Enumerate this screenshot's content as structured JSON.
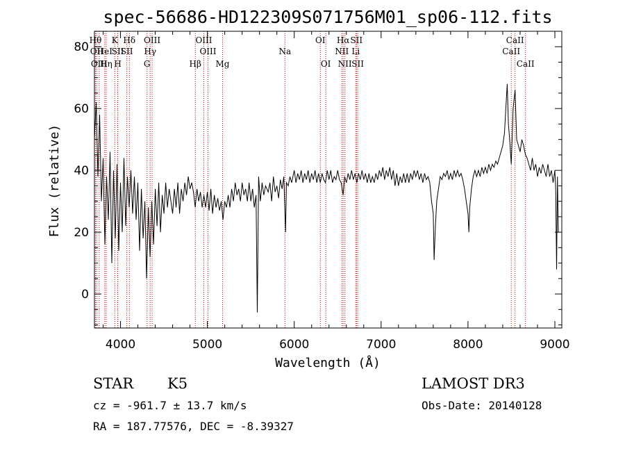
{
  "chart_data": {
    "type": "line",
    "title": "spec-56686-HD122309S071756M01_sp06-112.fits",
    "xlabel": "Wavelength (Å)",
    "ylabel": "Flux (relative)",
    "xlim": [
      3700,
      9080
    ],
    "ylim": [
      -11,
      85
    ],
    "xticks": [
      4000,
      5000,
      6000,
      7000,
      8000,
      9000
    ],
    "yticks": [
      0,
      20,
      40,
      60,
      80
    ],
    "series": [
      {
        "points": [
          [
            3700,
            50
          ],
          [
            3720,
            62
          ],
          [
            3740,
            38
          ],
          [
            3760,
            58
          ],
          [
            3780,
            30
          ],
          [
            3800,
            44
          ],
          [
            3820,
            16
          ],
          [
            3840,
            38
          ],
          [
            3860,
            24
          ],
          [
            3880,
            46
          ],
          [
            3900,
            10
          ],
          [
            3920,
            40
          ],
          [
            3940,
            18
          ],
          [
            3960,
            42
          ],
          [
            3980,
            14
          ],
          [
            4000,
            36
          ],
          [
            4020,
            20
          ],
          [
            4040,
            44
          ],
          [
            4060,
            22
          ],
          [
            4080,
            38
          ],
          [
            4100,
            28
          ],
          [
            4120,
            40
          ],
          [
            4140,
            26
          ],
          [
            4160,
            38
          ],
          [
            4180,
            24
          ],
          [
            4200,
            36
          ],
          [
            4220,
            14
          ],
          [
            4240,
            34
          ],
          [
            4260,
            18
          ],
          [
            4280,
            30
          ],
          [
            4300,
            5
          ],
          [
            4320,
            28
          ],
          [
            4340,
            12
          ],
          [
            4360,
            30
          ],
          [
            4380,
            16
          ],
          [
            4400,
            34
          ],
          [
            4420,
            22
          ],
          [
            4440,
            36
          ],
          [
            4460,
            20
          ],
          [
            4480,
            32
          ],
          [
            4500,
            26
          ],
          [
            4520,
            36
          ],
          [
            4540,
            28
          ],
          [
            4560,
            34
          ],
          [
            4580,
            30
          ],
          [
            4600,
            26
          ],
          [
            4620,
            34
          ],
          [
            4640,
            28
          ],
          [
            4660,
            36
          ],
          [
            4680,
            26
          ],
          [
            4700,
            34
          ],
          [
            4720,
            30
          ],
          [
            4740,
            36
          ],
          [
            4760,
            32
          ],
          [
            4780,
            38
          ],
          [
            4800,
            34
          ],
          [
            4820,
            36
          ],
          [
            4840,
            33
          ],
          [
            4860,
            28
          ],
          [
            4880,
            34
          ],
          [
            4900,
            30
          ],
          [
            4920,
            33
          ],
          [
            4940,
            28
          ],
          [
            4960,
            32
          ],
          [
            4980,
            28
          ],
          [
            5000,
            33
          ],
          [
            5020,
            27
          ],
          [
            5040,
            34
          ],
          [
            5060,
            26
          ],
          [
            5080,
            32
          ],
          [
            5100,
            28
          ],
          [
            5120,
            31
          ],
          [
            5140,
            27
          ],
          [
            5160,
            30
          ],
          [
            5180,
            24
          ],
          [
            5200,
            30
          ],
          [
            5220,
            28
          ],
          [
            5240,
            32
          ],
          [
            5260,
            28
          ],
          [
            5280,
            34
          ],
          [
            5300,
            30
          ],
          [
            5320,
            36
          ],
          [
            5340,
            32
          ],
          [
            5360,
            34
          ],
          [
            5380,
            30
          ],
          [
            5400,
            36
          ],
          [
            5420,
            32
          ],
          [
            5440,
            34
          ],
          [
            5460,
            30
          ],
          [
            5480,
            36
          ],
          [
            5500,
            30
          ],
          [
            5520,
            34
          ],
          [
            5540,
            28
          ],
          [
            5560,
            32
          ],
          [
            5575,
            -6
          ],
          [
            5590,
            38
          ],
          [
            5610,
            30
          ],
          [
            5630,
            36
          ],
          [
            5650,
            32
          ],
          [
            5670,
            35
          ],
          [
            5700,
            33
          ],
          [
            5720,
            36
          ],
          [
            5740,
            30
          ],
          [
            5760,
            38
          ],
          [
            5780,
            33
          ],
          [
            5800,
            35
          ],
          [
            5820,
            31
          ],
          [
            5840,
            37
          ],
          [
            5860,
            34
          ],
          [
            5880,
            38
          ],
          [
            5900,
            20
          ],
          [
            5910,
            36
          ],
          [
            5930,
            35
          ],
          [
            5950,
            38
          ],
          [
            5970,
            36
          ],
          [
            6000,
            40
          ],
          [
            6020,
            36
          ],
          [
            6040,
            39
          ],
          [
            6060,
            37
          ],
          [
            6080,
            40
          ],
          [
            6100,
            36
          ],
          [
            6120,
            39
          ],
          [
            6140,
            37
          ],
          [
            6160,
            40
          ],
          [
            6180,
            36
          ],
          [
            6200,
            39
          ],
          [
            6220,
            37
          ],
          [
            6240,
            40
          ],
          [
            6260,
            36
          ],
          [
            6280,
            39
          ],
          [
            6300,
            36
          ],
          [
            6320,
            39
          ],
          [
            6340,
            37
          ],
          [
            6360,
            36
          ],
          [
            6380,
            40
          ],
          [
            6400,
            37
          ],
          [
            6420,
            40
          ],
          [
            6440,
            36
          ],
          [
            6460,
            38
          ],
          [
            6480,
            37
          ],
          [
            6500,
            40
          ],
          [
            6520,
            37
          ],
          [
            6540,
            36
          ],
          [
            6563,
            32
          ],
          [
            6580,
            38
          ],
          [
            6600,
            36
          ],
          [
            6620,
            39
          ],
          [
            6640,
            37
          ],
          [
            6660,
            40
          ],
          [
            6680,
            37
          ],
          [
            6700,
            39
          ],
          [
            6720,
            36
          ],
          [
            6740,
            39
          ],
          [
            6760,
            37
          ],
          [
            6780,
            40
          ],
          [
            6800,
            37
          ],
          [
            6820,
            39
          ],
          [
            6840,
            36
          ],
          [
            6860,
            39
          ],
          [
            6880,
            36
          ],
          [
            6900,
            38
          ],
          [
            6920,
            36
          ],
          [
            6940,
            39
          ],
          [
            6960,
            37
          ],
          [
            6980,
            40
          ],
          [
            7000,
            38
          ],
          [
            7020,
            41
          ],
          [
            7040,
            37
          ],
          [
            7060,
            40
          ],
          [
            7080,
            38
          ],
          [
            7100,
            41
          ],
          [
            7120,
            37
          ],
          [
            7140,
            40
          ],
          [
            7160,
            35
          ],
          [
            7180,
            39
          ],
          [
            7200,
            35
          ],
          [
            7220,
            38
          ],
          [
            7240,
            36
          ],
          [
            7260,
            39
          ],
          [
            7280,
            36
          ],
          [
            7300,
            39
          ],
          [
            7320,
            36
          ],
          [
            7340,
            39
          ],
          [
            7360,
            37
          ],
          [
            7380,
            40
          ],
          [
            7400,
            38
          ],
          [
            7420,
            40
          ],
          [
            7440,
            37
          ],
          [
            7460,
            39
          ],
          [
            7480,
            36
          ],
          [
            7500,
            39
          ],
          [
            7520,
            37
          ],
          [
            7540,
            38
          ],
          [
            7560,
            36
          ],
          [
            7580,
            30
          ],
          [
            7600,
            26
          ],
          [
            7610,
            11
          ],
          [
            7625,
            22
          ],
          [
            7640,
            30
          ],
          [
            7660,
            34
          ],
          [
            7680,
            38
          ],
          [
            7700,
            37
          ],
          [
            7720,
            39
          ],
          [
            7740,
            38
          ],
          [
            7760,
            40
          ],
          [
            7780,
            37
          ],
          [
            7800,
            39
          ],
          [
            7820,
            37
          ],
          [
            7840,
            40
          ],
          [
            7860,
            38
          ],
          [
            7880,
            40
          ],
          [
            7900,
            38
          ],
          [
            7920,
            39
          ],
          [
            7940,
            37
          ],
          [
            7960,
            34
          ],
          [
            7980,
            30
          ],
          [
            8000,
            26
          ],
          [
            8010,
            20
          ],
          [
            8020,
            28
          ],
          [
            8040,
            34
          ],
          [
            8060,
            38
          ],
          [
            8080,
            40
          ],
          [
            8100,
            38
          ],
          [
            8120,
            40
          ],
          [
            8140,
            38
          ],
          [
            8160,
            41
          ],
          [
            8180,
            39
          ],
          [
            8200,
            41
          ],
          [
            8220,
            39
          ],
          [
            8240,
            42
          ],
          [
            8260,
            40
          ],
          [
            8280,
            42
          ],
          [
            8300,
            41
          ],
          [
            8320,
            43
          ],
          [
            8340,
            42
          ],
          [
            8360,
            44
          ],
          [
            8380,
            46
          ],
          [
            8400,
            48
          ],
          [
            8420,
            52
          ],
          [
            8440,
            62
          ],
          [
            8452,
            68
          ],
          [
            8465,
            55
          ],
          [
            8480,
            50
          ],
          [
            8498,
            42
          ],
          [
            8520,
            60
          ],
          [
            8542,
            66
          ],
          [
            8560,
            50
          ],
          [
            8580,
            48
          ],
          [
            8600,
            46
          ],
          [
            8620,
            50
          ],
          [
            8640,
            48
          ],
          [
            8662,
            45
          ],
          [
            8680,
            44
          ],
          [
            8700,
            42
          ],
          [
            8720,
            40
          ],
          [
            8740,
            44
          ],
          [
            8760,
            40
          ],
          [
            8780,
            42
          ],
          [
            8800,
            38
          ],
          [
            8820,
            41
          ],
          [
            8840,
            39
          ],
          [
            8860,
            42
          ],
          [
            8880,
            40
          ],
          [
            8900,
            38
          ],
          [
            8920,
            42
          ],
          [
            8940,
            38
          ],
          [
            8960,
            40
          ],
          [
            8980,
            36
          ],
          [
            9000,
            40
          ],
          [
            9010,
            34
          ],
          [
            9020,
            8
          ],
          [
            9030,
            38
          ],
          [
            9040,
            20
          ]
        ]
      }
    ],
    "line_markers": [
      {
        "label": "Hθ",
        "x": 3712,
        "row": 1
      },
      {
        "label": "OII",
        "x": 3727,
        "row": 2
      },
      {
        "label": "OIII",
        "x": 3755,
        "row": 3
      },
      {
        "label": "HeI",
        "x": 3819,
        "row": 2
      },
      {
        "label": "Hη",
        "x": 3835,
        "row": 3
      },
      {
        "label": "K",
        "x": 3934,
        "row": 1
      },
      {
        "label": "SII",
        "x": 3969,
        "row": 2
      },
      {
        "label": "H",
        "x": 3969,
        "row": 3
      },
      {
        "label": "Hδ",
        "x": 4102,
        "row": 1
      },
      {
        "label": "SII",
        "x": 4073,
        "row": 2
      },
      {
        "label": "OIII",
        "x": 4364,
        "row": 1
      },
      {
        "label": "Hγ",
        "x": 4341,
        "row": 2
      },
      {
        "label": "G",
        "x": 4305,
        "row": 3
      },
      {
        "label": "Hβ",
        "x": 4861,
        "row": 3
      },
      {
        "label": "OIII",
        "x": 4959,
        "row": 1
      },
      {
        "label": "OIII",
        "x": 5007,
        "row": 2
      },
      {
        "label": "Mg",
        "x": 5175,
        "row": 3
      },
      {
        "label": "Na",
        "x": 5893,
        "row": 2
      },
      {
        "label": "OI",
        "x": 6300,
        "row": 1
      },
      {
        "label": "OI",
        "x": 6363,
        "row": 3
      },
      {
        "label": "Hα",
        "x": 6563,
        "row": 1
      },
      {
        "label": "NII",
        "x": 6548,
        "row": 2
      },
      {
        "label": "NII",
        "x": 6583,
        "row": 3
      },
      {
        "label": "SII",
        "x": 6716,
        "row": 1
      },
      {
        "label": "Li",
        "x": 6708,
        "row": 2
      },
      {
        "label": "SII",
        "x": 6731,
        "row": 3
      },
      {
        "label": "CaII",
        "x": 8542,
        "row": 1
      },
      {
        "label": "CaII",
        "x": 8498,
        "row": 2
      },
      {
        "label": "CaII",
        "x": 8662,
        "row": 3
      }
    ],
    "grid": false,
    "line_color": "#000000",
    "marker_color": "#cc0000"
  },
  "info": {
    "class": "STAR",
    "subclass": "K5",
    "survey": "LAMOST DR3",
    "cz": "cz = -961.7 ± 13.7 km/s",
    "obs_date": "Obs-Date: 20140128",
    "radec": "RA = 187.77576, DEC =  -8.39327"
  }
}
